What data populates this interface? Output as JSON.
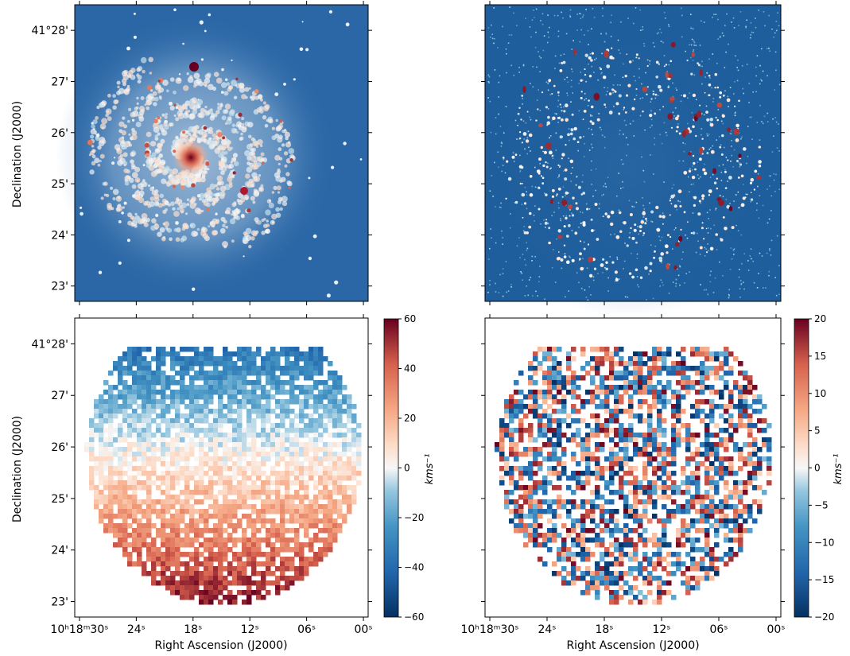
{
  "figure": {
    "y_axis_label": "Declination (J2000)",
    "x_axis_label": "Right Ascension (J2000)"
  },
  "axes": {
    "dec_ticks": [
      {
        "value": 28,
        "label": "41°28'"
      },
      {
        "value": 27,
        "label": "27'"
      },
      {
        "value": 26,
        "label": "26'"
      },
      {
        "value": 25,
        "label": "25'"
      },
      {
        "value": 24,
        "label": "24'"
      },
      {
        "value": 23,
        "label": "23'"
      }
    ],
    "ra_ticks": [
      {
        "value": 30,
        "label": "10ʰ18ᵐ30ˢ"
      },
      {
        "value": 24,
        "label": "24ˢ"
      },
      {
        "value": 18,
        "label": "18ˢ"
      },
      {
        "value": 12,
        "label": "12ˢ"
      },
      {
        "value": 6,
        "label": "06ˢ"
      },
      {
        "value": 0,
        "label": "00ˢ"
      }
    ]
  },
  "colorbars": [
    {
      "label": "kms⁻¹",
      "range": [
        -60,
        60
      ],
      "ticks": [
        {
          "value": 60,
          "label": "60"
        },
        {
          "value": 40,
          "label": "40"
        },
        {
          "value": 20,
          "label": "20"
        },
        {
          "value": 0,
          "label": "0"
        },
        {
          "value": -20,
          "label": "−20"
        },
        {
          "value": -40,
          "label": "−40"
        },
        {
          "value": -60,
          "label": "−60"
        }
      ]
    },
    {
      "label": "kms⁻¹",
      "range": [
        -20,
        20
      ],
      "ticks": [
        {
          "value": 20,
          "label": "20"
        },
        {
          "value": 15,
          "label": "15"
        },
        {
          "value": 10,
          "label": "10"
        },
        {
          "value": 5,
          "label": "5"
        },
        {
          "value": 0,
          "label": "0"
        },
        {
          "value": -5,
          "label": "−5"
        },
        {
          "value": -10,
          "label": "−10"
        },
        {
          "value": -15,
          "label": "−15"
        },
        {
          "value": -20,
          "label": "−20"
        }
      ]
    }
  ],
  "chart_data": [
    {
      "type": "heatmap",
      "panel": "top-left",
      "description_kind": "intensity image",
      "colormap": "RdBu_r",
      "xlabel": "",
      "ylabel": "Declination (J2000)",
      "xlim_ra_seconds": [
        30.5,
        -0.5
      ],
      "ylim_dec_arcmin": [
        22.7,
        28.5
      ]
    },
    {
      "type": "heatmap",
      "panel": "top-right",
      "colormap": "RdBu_r",
      "xlabel": "",
      "ylabel": "",
      "xlim_ra_seconds": [
        30.5,
        -0.5
      ],
      "ylim_dec_arcmin": [
        22.7,
        28.5
      ]
    },
    {
      "type": "heatmap",
      "panel": "bottom-left",
      "colormap": "RdBu_r",
      "xlabel": "Right Ascension (J2000)",
      "ylabel": "Declination (J2000)",
      "xlim_ra_seconds": [
        30.5,
        -0.5
      ],
      "ylim_dec_arcmin": [
        22.7,
        28.5
      ],
      "colorbar_range": [
        -60,
        60
      ],
      "colorbar_label": "kms⁻¹"
    },
    {
      "type": "heatmap",
      "panel": "bottom-right",
      "colormap": "RdBu_r",
      "xlabel": "Right Ascension (J2000)",
      "ylabel": "",
      "xlim_ra_seconds": [
        30.5,
        -0.5
      ],
      "ylim_dec_arcmin": [
        22.7,
        28.5
      ],
      "colorbar_range": [
        -20,
        20
      ],
      "colorbar_label": "kms⁻¹"
    }
  ],
  "colors": {
    "dark_blue": "#0a3a6e",
    "mid_blue": "#2f6fad",
    "light_blue": "#a9cde3",
    "white": "#f7f7f7",
    "light_red": "#f4a582",
    "mid_red": "#d6604d",
    "dark_red": "#67001f"
  }
}
